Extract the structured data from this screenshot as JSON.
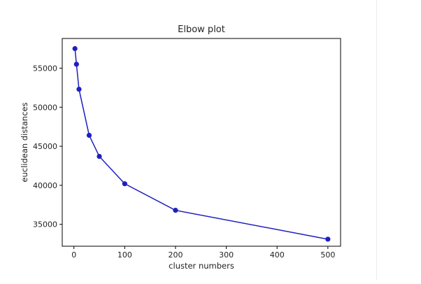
{
  "chart_data": {
    "type": "line",
    "title": "Elbow plot",
    "xlabel": "cluster numbers",
    "ylabel": "euclidean distances",
    "x": [
      2,
      5,
      10,
      30,
      50,
      100,
      200,
      500
    ],
    "series": [
      {
        "values": [
          57500,
          55500,
          52300,
          46400,
          43700,
          40200,
          36800,
          33100
        ],
        "color": "#1f1fbf",
        "marker": "circle"
      }
    ],
    "xlim": [
      -23,
      525
    ],
    "ylim": [
      32200,
      58800
    ],
    "xticks": [
      0,
      100,
      200,
      300,
      400,
      500
    ],
    "xtick_labels": [
      "0",
      "100",
      "200",
      "300",
      "400",
      "500"
    ],
    "yticks": [
      35000,
      40000,
      45000,
      50000,
      55000
    ],
    "ytick_labels": [
      "35000",
      "40000",
      "45000",
      "50000",
      "55000"
    ],
    "grid": false,
    "legend": "none"
  }
}
